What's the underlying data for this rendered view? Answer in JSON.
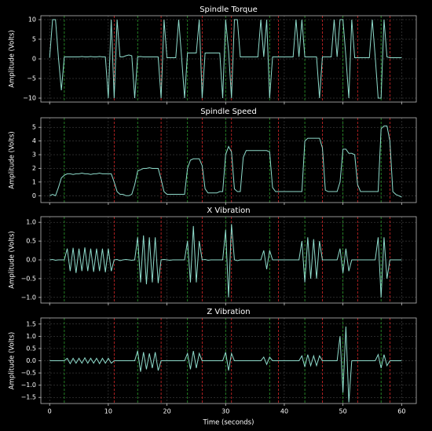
{
  "chart_data": [
    {
      "type": "line",
      "title": "Spindle Torque",
      "ylabel": "Amplitude (Volts)",
      "color": "#8fdccc",
      "grid": true,
      "xlim": [
        -1.5,
        62.5
      ],
      "ylim": [
        -11,
        11
      ],
      "xticks": [
        0,
        10,
        20,
        30,
        40,
        50,
        60
      ],
      "yticks": [
        {
          "value": -10,
          "label": "−10"
        },
        {
          "value": -5,
          "label": "−5"
        },
        0,
        5,
        10
      ],
      "x": [
        0,
        0.5,
        1,
        1.5,
        2,
        2.5,
        3,
        3.5,
        4,
        4.5,
        5,
        5.5,
        6,
        6.5,
        7,
        7.5,
        8,
        8.5,
        9,
        9.5,
        10,
        10.5,
        11,
        11.5,
        12,
        12.5,
        13,
        13.5,
        14,
        14.5,
        15,
        15.5,
        16,
        16.5,
        17,
        17.5,
        18,
        18.5,
        19,
        19.5,
        20,
        20.5,
        21,
        21.5,
        22,
        22.5,
        23,
        23.5,
        24,
        24.5,
        25,
        25.5,
        26,
        26.5,
        27,
        27.5,
        28,
        28.5,
        29,
        29.5,
        30,
        30.5,
        31,
        31.5,
        32,
        32.5,
        33,
        33.5,
        34,
        34.5,
        35,
        35.5,
        36,
        36.5,
        37,
        37.5,
        38,
        38.5,
        39,
        39.5,
        40,
        40.5,
        41,
        41.5,
        42,
        42.5,
        43,
        43.5,
        44,
        44.5,
        45,
        45.5,
        46,
        46.5,
        47,
        47.5,
        48,
        48.5,
        49,
        49.5,
        50,
        50.5,
        51,
        51.5,
        52,
        52.5,
        53,
        53.5,
        54,
        54.5,
        55,
        55.5,
        56,
        56.5,
        57,
        57.5,
        58,
        58.5,
        59,
        59.5,
        60
      ],
      "values": [
        0.3,
        10,
        10,
        0.3,
        -8,
        0.5,
        0.5,
        0.5,
        0.5,
        0.5,
        0.5,
        0.6,
        0.5,
        0.5,
        0.6,
        0.5,
        0.5,
        0.6,
        0.5,
        0.5,
        -10,
        10,
        -10,
        10,
        0.5,
        0.5,
        0.8,
        1.0,
        0.8,
        -10,
        0.5,
        0.6,
        0.5,
        0.5,
        0.5,
        0.5,
        0.5,
        0.5,
        -10,
        10,
        0.3,
        0.3,
        0.3,
        0.3,
        10,
        0.3,
        -10,
        1.5,
        1.5,
        1.5,
        1.5,
        10,
        -10,
        1.5,
        1.5,
        1.5,
        1.5,
        1.5,
        1.5,
        -10,
        10,
        2,
        -10,
        10,
        10,
        0.5,
        0.5,
        0.5,
        0.5,
        0.5,
        0.5,
        0.5,
        10,
        0.5,
        10,
        -10,
        0.5,
        0.5,
        0.5,
        0.5,
        0.5,
        0.5,
        0.5,
        0.5,
        10,
        0.5,
        10,
        0.5,
        0.5,
        0.5,
        0.5,
        0.5,
        -10,
        0.5,
        0.5,
        0.5,
        0.5,
        10,
        0.5,
        10,
        10,
        0.5,
        -10,
        10,
        0.3,
        0.3,
        0.3,
        0.3,
        0.3,
        0.3,
        10,
        0.5,
        -10,
        -10,
        10,
        0.5,
        0.3,
        0.3,
        0.3,
        0.3,
        0.3
      ]
    },
    {
      "type": "line",
      "title": "Spindle Speed",
      "ylabel": "Amplitude (Volts)",
      "color": "#8fdccc",
      "grid": true,
      "xlim": [
        -1.5,
        62.5
      ],
      "ylim": [
        -0.5,
        5.7
      ],
      "xticks": [
        0,
        10,
        20,
        30,
        40,
        50,
        60
      ],
      "yticks": [
        0,
        1,
        2,
        3,
        4,
        5
      ],
      "x": [
        0,
        0.5,
        1,
        1.5,
        2,
        2.5,
        3,
        3.5,
        4,
        4.5,
        5,
        5.5,
        6,
        6.5,
        7,
        7.5,
        8,
        8.5,
        9,
        9.5,
        10,
        10.5,
        11,
        11.5,
        12,
        12.5,
        13,
        13.5,
        14,
        14.5,
        15,
        15.5,
        16,
        16.5,
        17,
        17.5,
        18,
        18.5,
        19,
        19.5,
        20,
        20.5,
        21,
        21.5,
        22,
        22.5,
        23,
        23.5,
        24,
        24.5,
        25,
        25.5,
        26,
        26.5,
        27,
        27.5,
        28,
        28.5,
        29,
        29.5,
        30,
        30.5,
        31,
        31.5,
        32,
        32.5,
        33,
        33.5,
        34,
        34.5,
        35,
        35.5,
        36,
        36.5,
        37,
        37.5,
        38,
        38.5,
        39,
        39.5,
        40,
        40.5,
        41,
        41.5,
        42,
        42.5,
        43,
        43.5,
        44,
        44.5,
        45,
        45.5,
        46,
        46.5,
        47,
        47.5,
        48,
        48.5,
        49,
        49.5,
        50,
        50.5,
        51,
        51.5,
        52,
        52.5,
        53,
        53.5,
        54,
        54.5,
        55,
        55.5,
        56,
        56.5,
        57,
        57.5,
        58,
        58.5,
        59,
        59.5,
        60
      ],
      "values": [
        0,
        0.1,
        0,
        0.6,
        1.3,
        1.5,
        1.6,
        1.6,
        1.55,
        1.6,
        1.6,
        1.65,
        1.6,
        1.6,
        1.55,
        1.6,
        1.6,
        1.65,
        1.6,
        1.6,
        1.6,
        1.6,
        1.0,
        0.3,
        0.1,
        0.1,
        0,
        0,
        0.1,
        0.8,
        1.8,
        1.9,
        2.0,
        2.0,
        2.05,
        2.0,
        2.0,
        2.0,
        1.2,
        0.3,
        0.1,
        0.1,
        0.1,
        0.1,
        0.1,
        0.1,
        0.1,
        2.0,
        2.6,
        2.7,
        2.7,
        2.7,
        2.2,
        0.5,
        0.2,
        0.2,
        0.2,
        0.2,
        0.3,
        0.3,
        3.0,
        3.6,
        3.2,
        0.5,
        0.3,
        0.3,
        2.8,
        3.3,
        3.3,
        3.3,
        3.3,
        3.3,
        3.3,
        3.3,
        3.3,
        3.2,
        0.6,
        0.3,
        0.3,
        0.3,
        0.3,
        0.3,
        0.3,
        0.3,
        0.3,
        0.3,
        0.3,
        4.0,
        4.2,
        4.2,
        4.2,
        4.2,
        4.2,
        3.5,
        0.4,
        0.3,
        0.3,
        0.3,
        0.3,
        1.0,
        3.4,
        3.4,
        3.1,
        3.1,
        3.0,
        0.8,
        0.3,
        0.3,
        0.3,
        0.3,
        0.3,
        0.3,
        0.3,
        4.9,
        5.1,
        5.1,
        4.0,
        0.3,
        0.1,
        0,
        -0.1
      ]
    },
    {
      "type": "line",
      "title": "X Vibration",
      "ylabel": "Amplitude (Volts)",
      "color": "#8fdccc",
      "grid": true,
      "xlim": [
        -1.5,
        62.5
      ],
      "ylim": [
        -1.15,
        1.15
      ],
      "xticks": [
        0,
        10,
        20,
        30,
        40,
        50,
        60
      ],
      "yticks": [
        {
          "value": -1,
          "label": "−1.0"
        },
        {
          "value": -0.5,
          "label": "−0.5"
        },
        {
          "value": 0,
          "label": "0.0"
        },
        0.5,
        {
          "value": 1,
          "label": "1.0"
        }
      ],
      "x": [
        0,
        0.5,
        1,
        1.5,
        2,
        2.5,
        3,
        3.5,
        4,
        4.5,
        5,
        5.5,
        6,
        6.5,
        7,
        7.5,
        8,
        8.5,
        9,
        9.5,
        10,
        10.5,
        11,
        11.5,
        12,
        12.5,
        13,
        13.5,
        14,
        14.5,
        15,
        15.5,
        16,
        16.5,
        17,
        17.5,
        18,
        18.5,
        19,
        19.5,
        20,
        20.5,
        21,
        21.5,
        22,
        22.5,
        23,
        23.5,
        24,
        24.5,
        25,
        25.5,
        26,
        26.5,
        27,
        27.5,
        28,
        28.5,
        29,
        29.5,
        30,
        30.5,
        31,
        31.5,
        32,
        32.5,
        33,
        33.5,
        34,
        34.5,
        35,
        35.5,
        36,
        36.5,
        37,
        37.5,
        38,
        38.5,
        39,
        39.5,
        40,
        40.5,
        41,
        41.5,
        42,
        42.5,
        43,
        43.5,
        44,
        44.5,
        45,
        45.5,
        46,
        46.5,
        47,
        47.5,
        48,
        48.5,
        49,
        49.5,
        50,
        50.5,
        51,
        51.5,
        52,
        52.5,
        53,
        53.5,
        54,
        54.5,
        55,
        55.5,
        56,
        56.5,
        57,
        57.5,
        58,
        58.5,
        59,
        59.5,
        60
      ],
      "values": [
        0,
        0.01,
        -0.01,
        0,
        0,
        0,
        0.3,
        -0.3,
        0.32,
        -0.35,
        0.3,
        -0.3,
        0.33,
        -0.3,
        0.3,
        -0.32,
        0.3,
        -0.3,
        0.3,
        -0.33,
        0.3,
        -0.3,
        0,
        0.01,
        -0.02,
        0,
        0.01,
        0,
        -0.01,
        0,
        0.6,
        -0.6,
        0.65,
        -0.65,
        0.6,
        -0.6,
        0.6,
        -0.62,
        0,
        0.01,
        0,
        -0.01,
        0,
        0,
        0,
        0,
        0,
        0.5,
        -0.6,
        0.9,
        -0.6,
        0.5,
        0,
        0.01,
        -0.01,
        0,
        0,
        0,
        0,
        0,
        0.8,
        -1.0,
        0.95,
        0,
        -0.02,
        0,
        0,
        0,
        0,
        0,
        0,
        0,
        0,
        0.25,
        -0.25,
        0.25,
        0,
        0,
        0,
        0,
        0,
        0,
        0,
        0,
        0,
        0,
        0.5,
        -0.6,
        0.6,
        -0.5,
        0.55,
        -0.5,
        0.5,
        0,
        0,
        0,
        0,
        0,
        0,
        0.3,
        -0.35,
        0.3,
        -0.3,
        0,
        0,
        0,
        0,
        0,
        0,
        0,
        0,
        0,
        0.6,
        -1.0,
        0.6,
        -0.5,
        0,
        0,
        0,
        0,
        0
      ]
    },
    {
      "type": "line",
      "title": "Z Vibration",
      "ylabel": "Amplitude (Volts)",
      "xlabel": "Time (seconds)",
      "color": "#8fdccc",
      "grid": true,
      "xlim": [
        -1.5,
        62.5
      ],
      "ylim": [
        -1.75,
        1.75
      ],
      "xticks": [
        0,
        10,
        20,
        30,
        40,
        50,
        60
      ],
      "yticks": [
        {
          "value": -1.5,
          "label": "−1.5"
        },
        {
          "value": -1,
          "label": "−1.0"
        },
        {
          "value": -0.5,
          "label": "−0.5"
        },
        {
          "value": 0,
          "label": "0.0"
        },
        0.5,
        {
          "value": 1,
          "label": "1.0"
        },
        1.5
      ],
      "x": [
        0,
        0.5,
        1,
        1.5,
        2,
        2.5,
        3,
        3.5,
        4,
        4.5,
        5,
        5.5,
        6,
        6.5,
        7,
        7.5,
        8,
        8.5,
        9,
        9.5,
        10,
        10.5,
        11,
        11.5,
        12,
        12.5,
        13,
        13.5,
        14,
        14.5,
        15,
        15.5,
        16,
        16.5,
        17,
        17.5,
        18,
        18.5,
        19,
        19.5,
        20,
        20.5,
        21,
        21.5,
        22,
        22.5,
        23,
        23.5,
        24,
        24.5,
        25,
        25.5,
        26,
        26.5,
        27,
        27.5,
        28,
        28.5,
        29,
        29.5,
        30,
        30.5,
        31,
        31.5,
        32,
        32.5,
        33,
        33.5,
        34,
        34.5,
        35,
        35.5,
        36,
        36.5,
        37,
        37.5,
        38,
        38.5,
        39,
        39.5,
        40,
        40.5,
        41,
        41.5,
        42,
        42.5,
        43,
        43.5,
        44,
        44.5,
        45,
        45.5,
        46,
        46.5,
        47,
        47.5,
        48,
        48.5,
        49,
        49.5,
        50,
        50.5,
        51,
        51.5,
        52,
        52.5,
        53,
        53.5,
        54,
        54.5,
        55,
        55.5,
        56,
        56.5,
        57,
        57.5,
        58,
        58.5,
        59,
        59.5,
        60
      ],
      "values": [
        0,
        0,
        0,
        0,
        0,
        0,
        0.1,
        -0.12,
        0.1,
        -0.1,
        0.1,
        -0.1,
        0.12,
        -0.1,
        0.1,
        -0.1,
        0.1,
        -0.12,
        0.1,
        -0.1,
        0.1,
        -0.1,
        0,
        0,
        0,
        0,
        0,
        0,
        0,
        0,
        0.4,
        -0.45,
        0.35,
        -0.35,
        0.3,
        -0.3,
        0.35,
        -0.4,
        0,
        0,
        0,
        0,
        0,
        0,
        0,
        0,
        0,
        0.3,
        -0.35,
        0.4,
        -0.3,
        0.3,
        0,
        0,
        0,
        0,
        0,
        0,
        0,
        0,
        0.35,
        -0.4,
        0.3,
        0,
        0,
        0,
        0,
        0,
        0,
        0,
        0,
        0,
        0,
        0.15,
        -0.15,
        0.15,
        0,
        0,
        0,
        0,
        0,
        0,
        0,
        0,
        0,
        0,
        0.2,
        -0.25,
        0.25,
        -0.2,
        0.2,
        -0.2,
        0.2,
        0,
        0,
        0,
        0,
        0,
        0,
        1.0,
        -1.3,
        1.4,
        -1.7,
        0,
        0,
        0,
        0,
        0,
        0,
        0,
        0,
        0,
        0.25,
        -0.3,
        0.25,
        -0.2,
        0,
        0,
        0,
        0,
        0
      ]
    }
  ],
  "event_lines": {
    "start_color": "#2ca02c",
    "end_color": "#d62728",
    "start": [
      2.5,
      15,
      23.5,
      30,
      37.5,
      43.5,
      50,
      56.5
    ],
    "end": [
      11,
      19,
      26,
      31,
      39,
      46.5,
      52.5,
      58
    ]
  }
}
